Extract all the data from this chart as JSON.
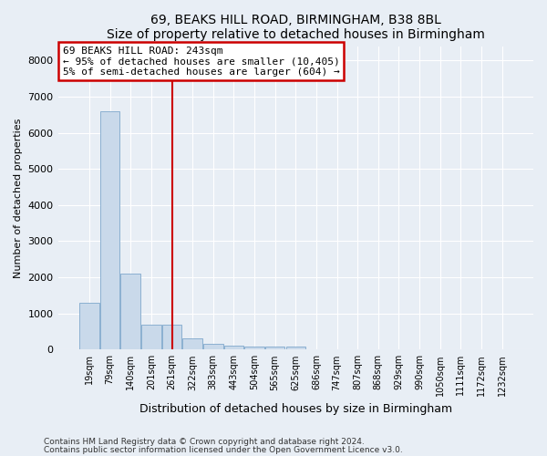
{
  "title1": "69, BEAKS HILL ROAD, BIRMINGHAM, B38 8BL",
  "title2": "Size of property relative to detached houses in Birmingham",
  "xlabel": "Distribution of detached houses by size in Birmingham",
  "ylabel": "Number of detached properties",
  "bin_labels": [
    "19sqm",
    "79sqm",
    "140sqm",
    "201sqm",
    "261sqm",
    "322sqm",
    "383sqm",
    "443sqm",
    "504sqm",
    "565sqm",
    "625sqm",
    "686sqm",
    "747sqm",
    "807sqm",
    "868sqm",
    "929sqm",
    "990sqm",
    "1050sqm",
    "1111sqm",
    "1172sqm",
    "1232sqm"
  ],
  "bar_heights": [
    1300,
    6600,
    2100,
    680,
    680,
    300,
    150,
    100,
    80,
    80,
    80,
    0,
    0,
    0,
    0,
    0,
    0,
    0,
    0,
    0,
    0
  ],
  "bar_color": "#c9d9ea",
  "bar_edge_color": "#7fa8cc",
  "vline_idx": 4,
  "vline_color": "#cc0000",
  "annotation_text": "69 BEAKS HILL ROAD: 243sqm\n← 95% of detached houses are smaller (10,405)\n5% of semi-detached houses are larger (604) →",
  "annotation_box_edgecolor": "#cc0000",
  "ylim": [
    0,
    8400
  ],
  "yticks": [
    0,
    1000,
    2000,
    3000,
    4000,
    5000,
    6000,
    7000,
    8000
  ],
  "footnote1": "Contains HM Land Registry data © Crown copyright and database right 2024.",
  "footnote2": "Contains public sector information licensed under the Open Government Licence v3.0.",
  "bg_color": "#e8eef5",
  "title_fontsize": 10,
  "xlabel_fontsize": 9,
  "ylabel_fontsize": 8
}
